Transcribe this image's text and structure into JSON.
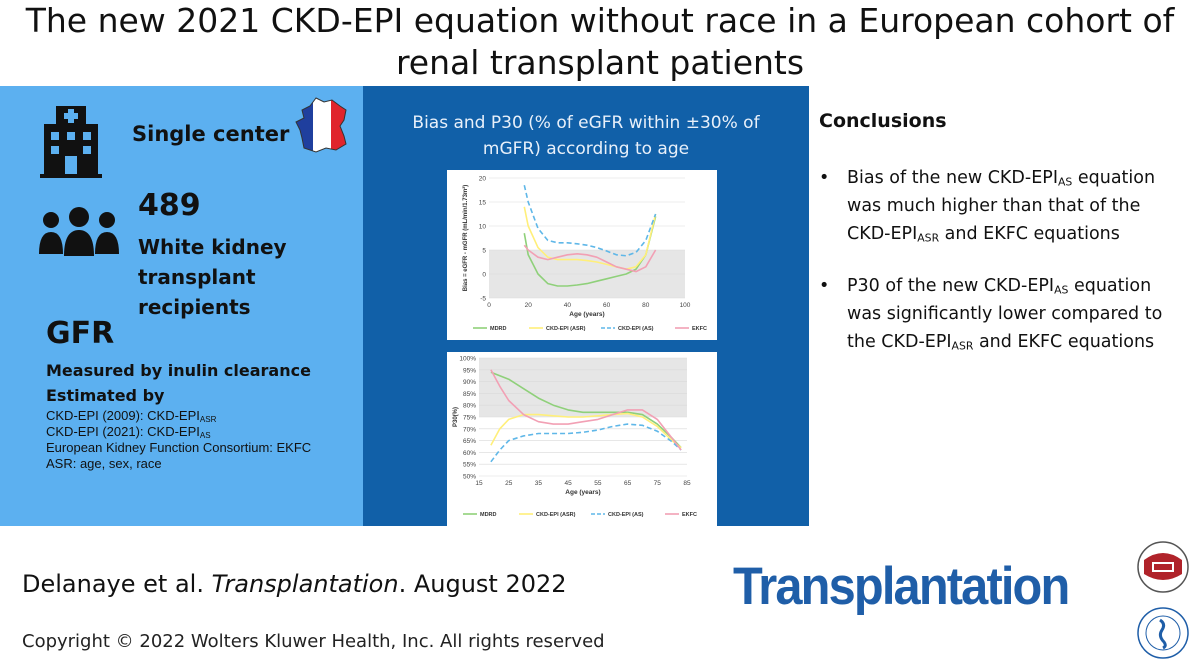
{
  "header": {
    "title_line1": "The new 2021 CKD-EPI equation without race in a European cohort of",
    "title_line2": "renal transplant patients"
  },
  "left_panel": {
    "single_center": "Single center",
    "patients_count": "489",
    "patients_desc_line1": "White kidney",
    "patients_desc_line2": "transplant recipients",
    "gfr_heading": "GFR",
    "measured_by": "Measured by inulin clearance",
    "estimated_by": "Estimated by",
    "eq1_prefix": "CKD-EPI (2009): CKD-EPI",
    "eq1_sub": "ASR",
    "eq2_prefix": "CKD-EPI (2021): CKD-EPI",
    "eq2_sub": "AS",
    "eq3": "European Kidney Function Consortium: EKFC",
    "eq4": "ASR: age, sex, race",
    "icons": [
      "hospital-icon",
      "france-map-icon",
      "people-icon"
    ],
    "france_colors": [
      "#1f3f9e",
      "#ffffff",
      "#e0242c"
    ]
  },
  "middle_panel": {
    "title_line1": "Bias and P30 (% of eGFR within ±30% of",
    "title_line2": "mGFR) according to age"
  },
  "conclusions": {
    "title": "Conclusions",
    "b1_l1_pre": "Bias of the new CKD-EPI",
    "b1_l1_sub": "AS",
    "b1_l1_post": " equation",
    "b1_l2": "was much higher than that of the",
    "b1_l3_pre": "CKD-EPI",
    "b1_l3_sub": "ASR",
    "b1_l3_post": " and EKFC equations",
    "b2_l1_pre": "P30 of the new CKD-EPI",
    "b2_l1_sub": "AS",
    "b2_l1_post": " equation",
    "b2_l2": "was significantly lower compared to",
    "b2_l3_pre": "the CKD-EPI",
    "b2_l3_sub": "ASR",
    "b2_l3_post": " and EKFC equations",
    "bullet_char": "•"
  },
  "footer": {
    "cite_pre": "Delanaye et al. ",
    "cite_journal": "Transplantation",
    "cite_post": ". August 2022",
    "copyright": "Copyright © 2022  Wolters Kluwer Health, Inc. All rights reserved",
    "logo_text": "Transplantation",
    "logo_colors": [
      "#1f5ea8",
      "#b0232a"
    ]
  },
  "chart_data": [
    {
      "type": "line",
      "xlabel": "Age (years)",
      "ylabel": "Bias = eGFR - mGFR (mL/min/1.73m²)",
      "xlim": [
        0,
        100
      ],
      "ylim": [
        -5,
        20
      ],
      "xticks": [
        0,
        20,
        40,
        60,
        80,
        100
      ],
      "yticks": [
        -5,
        0,
        5,
        10,
        15,
        20
      ],
      "shaded_band": [
        -5,
        5
      ],
      "series": [
        {
          "name": "MDRD",
          "color": "#8fd07a",
          "dash": false,
          "x": [
            18,
            20,
            25,
            30,
            35,
            40,
            45,
            50,
            55,
            60,
            65,
            70,
            75,
            80,
            85
          ],
          "y": [
            8.5,
            4,
            0,
            -2,
            -2.5,
            -2.5,
            -2.3,
            -2,
            -1.5,
            -1,
            -0.5,
            0,
            1,
            4,
            12
          ]
        },
        {
          "name": "CKD-EPI (ASR)",
          "color": "#ffef7a",
          "dash": false,
          "x": [
            18,
            20,
            25,
            30,
            35,
            40,
            45,
            50,
            55,
            60,
            65,
            70,
            75,
            80,
            85
          ],
          "y": [
            14,
            10,
            5.5,
            3.5,
            3,
            3,
            3,
            2.8,
            2.5,
            2,
            1.5,
            1,
            1.5,
            4,
            12.5
          ]
        },
        {
          "name": "CKD-EPI (AS)",
          "color": "#5fb7e8",
          "dash": true,
          "x": [
            18,
            20,
            25,
            30,
            35,
            40,
            45,
            50,
            55,
            60,
            65,
            70,
            75,
            80,
            85
          ],
          "y": [
            18.5,
            15,
            9.5,
            7,
            6.5,
            6.5,
            6.3,
            6,
            5.5,
            4.8,
            4,
            3.8,
            4.5,
            7,
            12.5
          ]
        },
        {
          "name": "EKFC",
          "color": "#f2a0b4",
          "dash": false,
          "x": [
            18,
            20,
            25,
            30,
            35,
            40,
            45,
            50,
            55,
            60,
            65,
            70,
            75,
            80,
            85
          ],
          "y": [
            6,
            5,
            3.5,
            3,
            3.5,
            4,
            4.2,
            4,
            3.5,
            2.5,
            1.5,
            1,
            0.5,
            1.5,
            5
          ]
        }
      ]
    },
    {
      "type": "line",
      "xlabel": "Age (years)",
      "ylabel": "P30(%)",
      "xlim": [
        15,
        85
      ],
      "ylim": [
        50,
        100
      ],
      "xticks": [
        15,
        25,
        35,
        45,
        55,
        65,
        75,
        85
      ],
      "yticks": [
        50,
        55,
        60,
        65,
        70,
        75,
        80,
        85,
        90,
        95,
        100
      ],
      "ytick_suffix": "%",
      "shaded_band": [
        75,
        100
      ],
      "series": [
        {
          "name": "MDRD",
          "color": "#8fd07a",
          "dash": false,
          "x": [
            19,
            25,
            30,
            35,
            40,
            45,
            50,
            55,
            60,
            65,
            70,
            75,
            80,
            83
          ],
          "y": [
            94,
            91,
            87,
            83,
            80,
            78,
            77,
            77,
            77,
            77,
            76,
            72,
            66,
            62
          ]
        },
        {
          "name": "CKD-EPI (ASR)",
          "color": "#ffef7a",
          "dash": false,
          "x": [
            19,
            22,
            25,
            30,
            35,
            40,
            45,
            50,
            55,
            60,
            65,
            70,
            75,
            80,
            83
          ],
          "y": [
            63,
            70,
            74,
            76,
            76,
            75.5,
            75,
            75,
            75.5,
            76,
            76.5,
            75,
            71,
            65,
            62
          ]
        },
        {
          "name": "CKD-EPI (AS)",
          "color": "#5fb7e8",
          "dash": true,
          "x": [
            19,
            22,
            25,
            30,
            35,
            40,
            45,
            50,
            55,
            60,
            65,
            70,
            75,
            80,
            83
          ],
          "y": [
            56,
            61,
            65,
            67,
            68,
            68,
            68,
            68.5,
            69.5,
            71,
            72,
            71.5,
            69,
            64.5,
            61
          ]
        },
        {
          "name": "EKFC",
          "color": "#f2a0b4",
          "dash": false,
          "x": [
            19,
            22,
            25,
            30,
            35,
            40,
            45,
            50,
            55,
            60,
            65,
            70,
            75,
            80,
            83
          ],
          "y": [
            95,
            88,
            82,
            76,
            73,
            72,
            72,
            73,
            74,
            76,
            78,
            78,
            74,
            66,
            61
          ]
        }
      ]
    }
  ]
}
